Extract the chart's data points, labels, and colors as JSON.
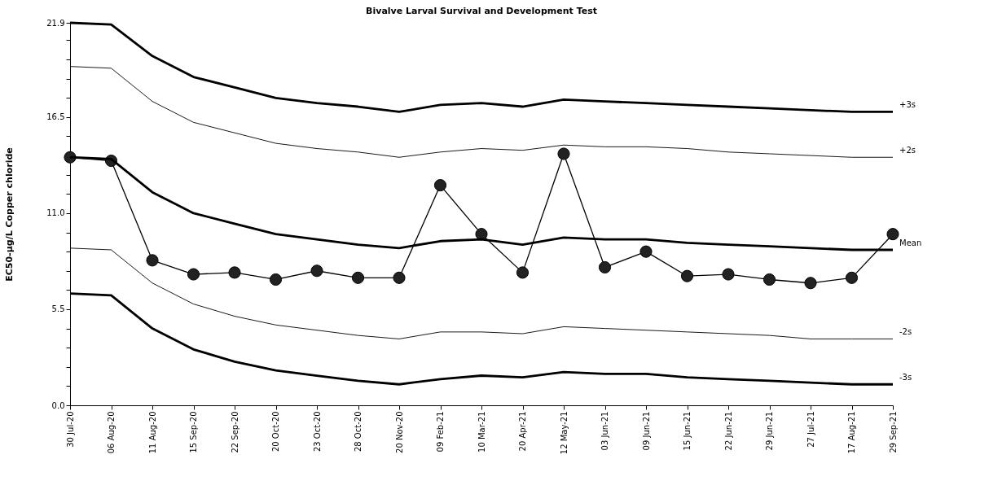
{
  "chart_data": {
    "type": "line",
    "title": "Bivalve Larval Survival and Development Test",
    "ylabel": "EC50-µg/L Copper chloride",
    "categories": [
      "30 Jul-20",
      "06 Aug-20",
      "11 Aug-20",
      "15 Sep-20",
      "22 Sep-20",
      "20 Oct-20",
      "23 Oct-20",
      "28 Oct-20",
      "20 Nov-20",
      "09 Feb-21",
      "10 Mar-21",
      "20 Apr-21",
      "12 May-21",
      "03 Jun-21",
      "09 Jun-21",
      "15 Jun-21",
      "22 Jun-21",
      "29 Jun-21",
      "27 Jul-21",
      "17 Aug-21",
      "29 Sep-21"
    ],
    "series": [
      {
        "color": "#000000",
        "marker": "circle",
        "values": [
          14.2,
          14.0,
          8.3,
          7.5,
          7.6,
          7.2,
          7.7,
          7.3,
          7.3,
          12.6,
          9.8,
          7.6,
          14.4,
          7.9,
          8.8,
          7.4,
          7.5,
          7.2,
          7.0,
          7.3,
          9.8
        ]
      },
      {
        "name": "+3s",
        "color": "#000000",
        "marker": "none",
        "values": [
          21.9,
          21.8,
          20.0,
          18.8,
          18.2,
          17.6,
          17.3,
          17.1,
          16.8,
          17.2,
          17.3,
          17.1,
          17.5,
          17.4,
          17.3,
          17.2,
          17.1,
          17.0,
          16.9,
          16.8,
          16.8
        ]
      },
      {
        "name": "+2s",
        "color": "#000000",
        "marker": "none",
        "values": [
          19.4,
          19.3,
          17.4,
          16.2,
          15.6,
          15.0,
          14.7,
          14.5,
          14.2,
          14.5,
          14.7,
          14.6,
          14.9,
          14.8,
          14.8,
          14.7,
          14.5,
          14.4,
          14.3,
          14.2,
          14.2
        ]
      },
      {
        "name": "Mean",
        "color": "#000000",
        "marker": "none",
        "values": [
          14.2,
          14.1,
          12.2,
          11.0,
          10.4,
          9.8,
          9.5,
          9.2,
          9.0,
          9.4,
          9.5,
          9.2,
          9.6,
          9.5,
          9.5,
          9.3,
          9.2,
          9.1,
          9.0,
          8.9,
          8.9
        ]
      },
      {
        "name": "-2s",
        "color": "#000000",
        "marker": "none",
        "values": [
          9.0,
          8.9,
          7.0,
          5.8,
          5.1,
          4.6,
          4.3,
          4.0,
          3.8,
          4.2,
          4.2,
          4.1,
          4.5,
          4.4,
          4.3,
          4.2,
          4.1,
          4.0,
          3.8,
          3.8,
          3.8
        ]
      },
      {
        "name": "-3s",
        "color": "#000000",
        "marker": "none",
        "values": [
          6.4,
          6.3,
          4.4,
          3.2,
          2.5,
          2.0,
          1.7,
          1.4,
          1.2,
          1.5,
          1.7,
          1.6,
          1.9,
          1.8,
          1.8,
          1.6,
          1.5,
          1.4,
          1.3,
          1.2,
          1.2
        ]
      }
    ],
    "ylim": [
      0,
      21.9
    ],
    "yticks": [
      {
        "value": 0,
        "label": "0.0"
      },
      {
        "value": 1.1,
        "label": null
      },
      {
        "value": 2.2,
        "label": null
      },
      {
        "value": 3.3,
        "label": null
      },
      {
        "value": 4.4,
        "label": null
      },
      {
        "value": 5.5,
        "label": "5.5"
      },
      {
        "value": 6.6,
        "label": null
      },
      {
        "value": 7.7,
        "label": null
      },
      {
        "value": 8.8,
        "label": null
      },
      {
        "value": 9.9,
        "label": null
      },
      {
        "value": 11.0,
        "label": "11.0"
      },
      {
        "value": 12.1,
        "label": null
      },
      {
        "value": 13.2,
        "label": null
      },
      {
        "value": 14.3,
        "label": null
      },
      {
        "value": 15.4,
        "label": null
      },
      {
        "value": 16.5,
        "label": "16.5"
      },
      {
        "value": 17.6,
        "label": null
      },
      {
        "value": 18.7,
        "label": null
      },
      {
        "value": 19.8,
        "label": null
      },
      {
        "value": 20.9,
        "label": null
      },
      {
        "value": 21.9,
        "label": "21.9"
      }
    ],
    "grid": false,
    "line_style": "solid"
  }
}
